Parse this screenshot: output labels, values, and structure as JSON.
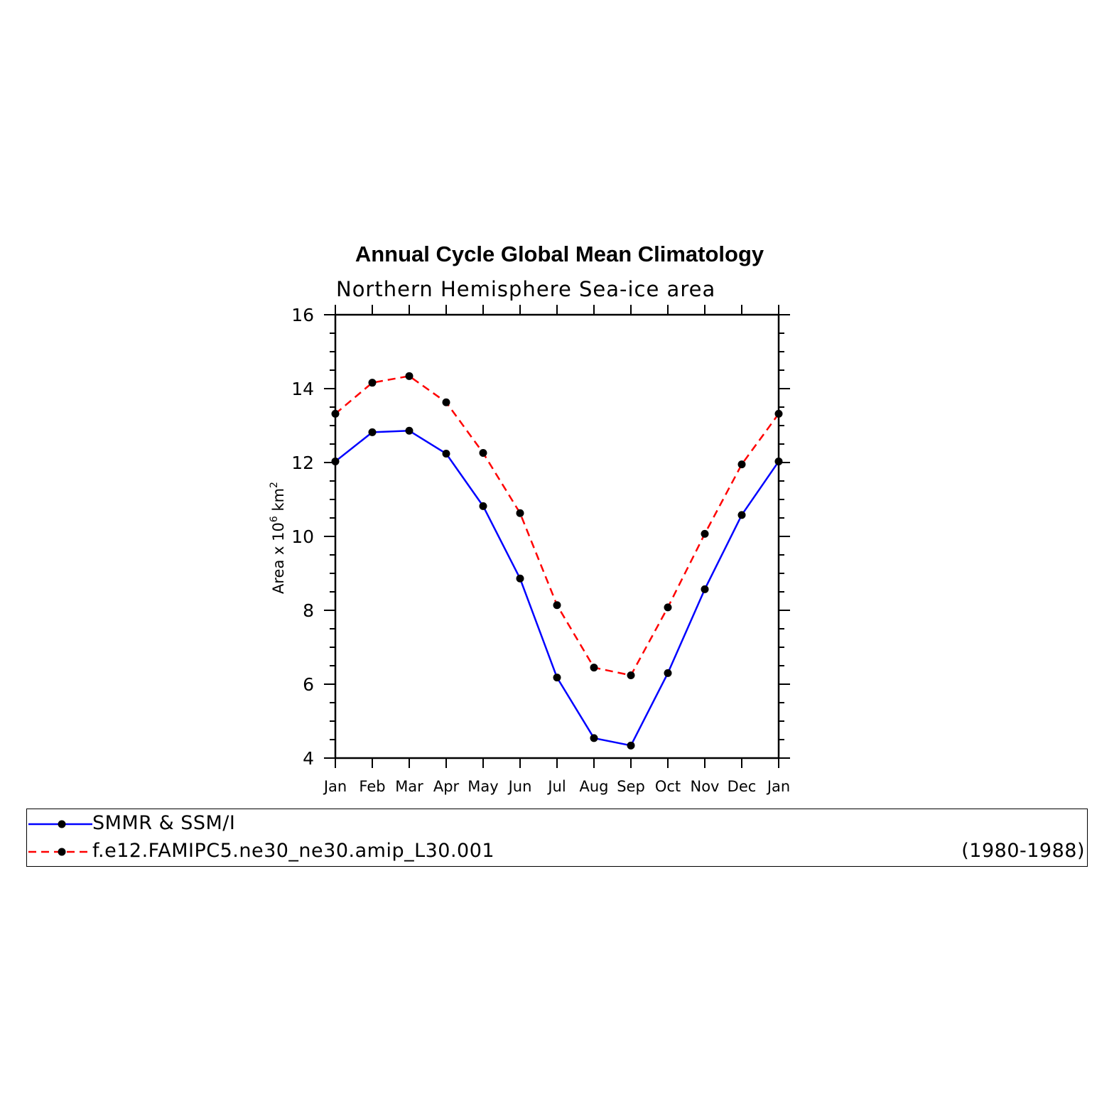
{
  "chart_data": {
    "type": "line",
    "title": "Annual Cycle Global Mean Climatology",
    "subtitle": "Northern Hemisphere Sea-ice area",
    "ylabel": "Area x 10^6 km^2",
    "ylabel_parts": {
      "base": "Area x 10",
      "exp1": "6",
      "mid": " km",
      "exp2": "2"
    },
    "xlabel": "",
    "ylim": [
      4,
      16
    ],
    "yticks": [
      "4",
      "6",
      "8",
      "10",
      "12",
      "14",
      "16"
    ],
    "categories": [
      "Jan",
      "Feb",
      "Mar",
      "Apr",
      "May",
      "Jun",
      "Jul",
      "Aug",
      "Sep",
      "Oct",
      "Nov",
      "Dec",
      "Jan"
    ],
    "series": [
      {
        "name": "SMMR & SSM/I",
        "color": "#0000ff",
        "style": "solid",
        "values": [
          12.03,
          12.82,
          12.86,
          12.24,
          10.82,
          8.86,
          6.18,
          4.54,
          4.34,
          6.3,
          8.57,
          10.58,
          12.03
        ]
      },
      {
        "name": "f.e12.FAMIPC5.ne30_ne30.amip_L30.001",
        "color": "#ff0000",
        "style": "dashed",
        "values": [
          13.32,
          14.16,
          14.34,
          13.63,
          12.26,
          10.63,
          8.14,
          6.45,
          6.24,
          8.08,
          10.07,
          11.95,
          13.32
        ]
      }
    ],
    "grid": false,
    "legend_position": "bottom",
    "legend_note": "(1980-1988)"
  }
}
